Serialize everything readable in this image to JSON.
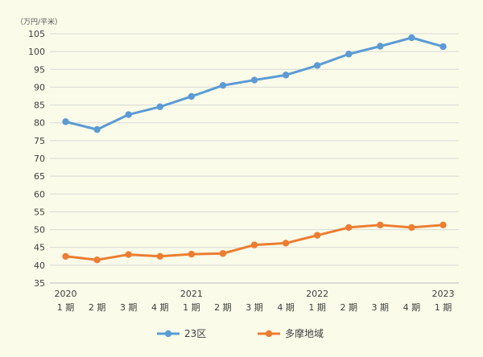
{
  "chart_data": {
    "type": "line",
    "unit_label": "（万円/平米）",
    "categories": [
      {
        "year": "2020",
        "period": "1 期"
      },
      {
        "year": "",
        "period": "2 期"
      },
      {
        "year": "",
        "period": "3 期"
      },
      {
        "year": "",
        "period": "4 期"
      },
      {
        "year": "2021",
        "period": "1 期"
      },
      {
        "year": "",
        "period": "2 期"
      },
      {
        "year": "",
        "period": "3 期"
      },
      {
        "year": "",
        "period": "4 期"
      },
      {
        "year": "2022",
        "period": "1 期"
      },
      {
        "year": "",
        "period": "2 期"
      },
      {
        "year": "",
        "period": "3 期"
      },
      {
        "year": "",
        "period": "4 期"
      },
      {
        "year": "2023",
        "period": "1 期"
      }
    ],
    "series": [
      {
        "name": "23区",
        "color": "#5b9bd5",
        "values": [
          80.3,
          78.1,
          82.3,
          84.5,
          87.4,
          90.5,
          92.0,
          93.4,
          96.1,
          99.3,
          101.5,
          103.9,
          101.4
        ]
      },
      {
        "name": "多摩地域",
        "color": "#ed7d31",
        "values": [
          42.5,
          41.5,
          43.0,
          42.5,
          43.1,
          43.3,
          45.7,
          46.2,
          48.4,
          50.6,
          51.3,
          50.6,
          51.3
        ]
      }
    ],
    "ylim": [
      35,
      105
    ],
    "ytick_step": 5,
    "grid": true,
    "legend_position": "bottom"
  }
}
